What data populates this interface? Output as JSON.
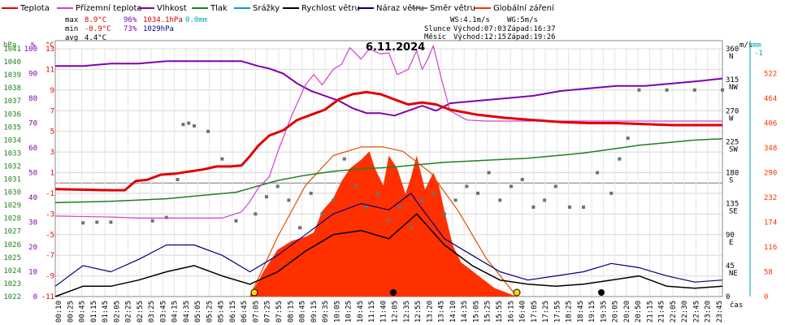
{
  "chart_data": {
    "type": "line",
    "title": "6.11.2024",
    "xlabel": "čas",
    "legend": [
      {
        "name": "Teplota",
        "color": "#e00000"
      },
      {
        "name": "Přízemní teplota",
        "color": "#d040d0"
      },
      {
        "name": "Vlhkost",
        "color": "#8000b0"
      },
      {
        "name": "Tlak",
        "color": "#208020"
      },
      {
        "name": "Srážky",
        "color": "#00a0c0"
      },
      {
        "name": "Rychlost větru",
        "color": "#000000"
      },
      {
        "name": "Náraz větru",
        "color": "#000080"
      },
      {
        "name": "Směr větru",
        "color": "#707070"
      },
      {
        "name": "Globální záření",
        "color": "#ff3000"
      }
    ],
    "stats": {
      "max": {
        "label": "max",
        "temp": "8.9°C",
        "hum": "96%",
        "press": "1034.1hPa",
        "rain": "0.0mm"
      },
      "min": {
        "label": "min",
        "temp": "-0.9°C",
        "hum": "73%",
        "press": "1029hPa"
      },
      "avg": {
        "label": "avg",
        "temp": "4.4°C"
      }
    },
    "info": {
      "ws": "WS:4.1m/s",
      "wg": "WG:5m/s",
      "sun_label": "Slunce",
      "sun_rise": "Východ:07:03",
      "sun_set": "Západ:16:37",
      "moon_label": "Měsíc",
      "moon_rise": "Východ:12:15",
      "moon_set": "Západ:19:26"
    },
    "axes": {
      "hpa": {
        "unit": "hPa",
        "ticks": [
          "1041",
          "1040",
          "1039",
          "1038",
          "1037",
          "1036",
          "1035",
          "1034",
          "1033",
          "1032",
          "1031",
          "1030",
          "1029",
          "1028",
          "1027",
          "1026",
          "1025",
          "1024",
          "1023",
          "1022"
        ],
        "range": [
          1022,
          1041
        ]
      },
      "pct": {
        "unit": "%",
        "ticks": [
          "100",
          "90",
          "80",
          "70",
          "60",
          "50",
          "40",
          "30",
          "20",
          "10",
          "0"
        ],
        "range": [
          0,
          100
        ]
      },
      "temp": {
        "unit": "°C",
        "ticks": [
          "13",
          "11",
          "9",
          "7",
          "5",
          "3",
          "1",
          "-1",
          "-3",
          "-5",
          "-7",
          "-9",
          "-11"
        ],
        "range": [
          -11,
          13
        ]
      },
      "dir": {
        "unit": "m/s",
        "ticks": [
          "360",
          "315",
          "270",
          "225",
          "180",
          "135",
          "90",
          "45",
          "0"
        ],
        "labels": [
          "N",
          "NW",
          "W",
          "SW",
          "S",
          "SE",
          "E",
          "NE",
          ""
        ],
        "range": [
          0,
          360
        ]
      },
      "mm": {
        "unit": "mm",
        "ticks": [
          "-1"
        ]
      },
      "wm2": {
        "ticks": [
          "522",
          "464",
          "406",
          "348",
          "290",
          "232",
          "174",
          "116",
          "58",
          "0"
        ],
        "range": [
          0,
          580
        ]
      }
    },
    "x_ticks": [
      "00:10",
      "00:25",
      "00:45",
      "01:15",
      "01:45",
      "02:05",
      "02:25",
      "02:55",
      "03:25",
      "03:45",
      "04:15",
      "04:35",
      "05:05",
      "05:25",
      "05:45",
      "06:15",
      "06:45",
      "07:05",
      "07:25",
      "07:55",
      "08:15",
      "08:45",
      "09:15",
      "09:35",
      "10:05",
      "10:25",
      "10:45",
      "11:15",
      "11:40",
      "12:05",
      "12:35",
      "12:55",
      "13:20",
      "13:45",
      "14:10",
      "14:35",
      "15:05",
      "15:25",
      "15:55",
      "16:15",
      "16:40",
      "17:05",
      "17:25",
      "17:55",
      "18:25",
      "18:45",
      "19:15",
      "19:35",
      "20:05",
      "20:20",
      "20:50",
      "21:15",
      "21:45",
      "22:05",
      "22:30",
      "22:45",
      "23:20",
      "23:45"
    ],
    "series": {
      "temperature": {
        "x": [
          0,
          2,
          2.5,
          2.9,
          3.3,
          3.8,
          4.3,
          4.8,
          5.3,
          5.8,
          6.3,
          6.7,
          7.0,
          7.3,
          7.7,
          8.2,
          8.7,
          9.2,
          9.7,
          10.2,
          10.7,
          11.2,
          11.7,
          12.2,
          12.7,
          13.2,
          13.7,
          14.2,
          15.2,
          16.2,
          17.2,
          18.2,
          19.2,
          20.2,
          21.2,
          22.2,
          23.2,
          24
        ],
        "y": [
          -0.6,
          -0.7,
          -0.7,
          0.2,
          0.3,
          0.8,
          0.9,
          1.1,
          1.3,
          1.6,
          1.6,
          1.7,
          2.6,
          3.6,
          4.6,
          5.1,
          6.1,
          6.6,
          7.1,
          8.1,
          8.6,
          8.8,
          8.6,
          8.1,
          7.6,
          7.8,
          7.6,
          7.1,
          6.6,
          6.3,
          6.1,
          5.9,
          5.8,
          5.8,
          5.7,
          5.6,
          5.6,
          5.6
        ]
      },
      "ground_temperature": {
        "x": [
          0,
          2,
          3,
          4,
          5,
          6,
          6.7,
          7.0,
          7.3,
          7.7,
          8.0,
          8.5,
          9.0,
          9.3,
          9.6,
          10.0,
          10.3,
          10.6,
          11.0,
          11.3,
          11.7,
          12.0,
          12.3,
          12.7,
          13.0,
          13.2,
          13.4,
          13.6,
          13.9,
          14.2,
          14.8,
          15.5,
          16.5,
          18,
          20,
          22,
          24
        ],
        "y": [
          -3.2,
          -3.3,
          -3.4,
          -3.4,
          -3.4,
          -3.4,
          -2.8,
          -1.8,
          -0.5,
          0.6,
          3.0,
          6.5,
          9.5,
          10.5,
          9.5,
          11.0,
          11.5,
          13.1,
          12.0,
          13.0,
          12.5,
          12.6,
          10.5,
          11.0,
          12.8,
          11.0,
          12.0,
          13.3,
          10.0,
          7.0,
          6.1,
          6.0,
          6.0,
          6.0,
          6.0,
          6.0,
          6.0
        ]
      },
      "humidity": {
        "x": [
          0,
          1,
          2,
          3,
          4,
          5,
          6,
          6.7,
          7.0,
          7.3,
          7.7,
          8.2,
          8.7,
          9.2,
          9.7,
          10.2,
          10.7,
          11.2,
          11.7,
          12.2,
          12.7,
          13.2,
          13.7,
          14.2,
          15.2,
          16.2,
          17.2,
          18.2,
          19.2,
          20.2,
          21.2,
          22.2,
          23.2,
          24
        ],
        "y": [
          93,
          93,
          94,
          94,
          95,
          95,
          95,
          95,
          94,
          93,
          92,
          90,
          86,
          83,
          81,
          79,
          76,
          74,
          74,
          73,
          75,
          77,
          75,
          78,
          79,
          80,
          81,
          83,
          84,
          85,
          85,
          86,
          87,
          88
        ]
      },
      "pressure": {
        "x": [
          0,
          2,
          4,
          6,
          6.5,
          7,
          7.5,
          8,
          9,
          10,
          11,
          12,
          13,
          14,
          15,
          16,
          17,
          18,
          19,
          20,
          21,
          22,
          23,
          24
        ],
        "y": [
          1029.2,
          1029.3,
          1029.5,
          1029.9,
          1030.0,
          1030.3,
          1030.6,
          1030.9,
          1031.3,
          1031.6,
          1031.8,
          1031.9,
          1032.1,
          1032.3,
          1032.4,
          1032.5,
          1032.6,
          1032.8,
          1033.0,
          1033.3,
          1033.6,
          1033.8,
          1034.0,
          1034.1
        ]
      },
      "solar_radiation": {
        "x": [
          7.0,
          7.5,
          8.0,
          8.5,
          9.0,
          9.3,
          9.6,
          10.0,
          10.3,
          10.6,
          11.0,
          11.3,
          11.5,
          11.8,
          12.0,
          12.3,
          12.6,
          12.8,
          13.0,
          13.3,
          13.6,
          13.8,
          14.0,
          14.3,
          14.6,
          15.0,
          15.4,
          15.8,
          16.2,
          16.6
        ],
        "y": [
          0,
          60,
          110,
          130,
          140,
          150,
          200,
          230,
          270,
          300,
          320,
          340,
          300,
          260,
          330,
          300,
          240,
          280,
          330,
          250,
          290,
          260,
          200,
          120,
          80,
          60,
          40,
          20,
          10,
          0
        ]
      },
      "clear_sky_radiation": {
        "x": [
          7.0,
          8.0,
          9.0,
          10.0,
          11.0,
          11.8,
          12.5,
          13.5,
          14.5,
          15.5,
          16.6
        ],
        "y": [
          0,
          140,
          260,
          330,
          350,
          350,
          340,
          290,
          200,
          90,
          0
        ]
      },
      "wind_speed": {
        "x": [
          0,
          1,
          2,
          3,
          4,
          5,
          6,
          7,
          8,
          9,
          10,
          11,
          12,
          13,
          14,
          15,
          16,
          17,
          18,
          19,
          20,
          21,
          22,
          23,
          24
        ],
        "y": [
          0,
          0.5,
          0.5,
          0.8,
          1.2,
          1.5,
          1.0,
          0.6,
          1.2,
          2.2,
          3.0,
          3.2,
          2.8,
          4.0,
          2.5,
          1.5,
          0.8,
          0.6,
          0.5,
          0.6,
          0.8,
          1.0,
          0.5,
          0.4,
          0.5
        ]
      },
      "wind_gust": {
        "x": [
          0,
          1,
          2,
          3,
          4,
          5,
          6,
          7,
          8,
          9,
          10,
          11,
          12,
          12.8,
          13,
          14,
          15,
          16,
          17,
          18,
          19,
          20,
          21,
          22,
          23,
          24
        ],
        "y": [
          0.5,
          1.5,
          1.2,
          1.8,
          2.5,
          2.5,
          2.0,
          1.2,
          2.0,
          3.0,
          4.0,
          4.5,
          4.2,
          5.0,
          4.6,
          2.8,
          2.0,
          1.2,
          0.8,
          1.0,
          1.2,
          1.6,
          1.4,
          1.0,
          0.7,
          0.8
        ]
      },
      "wind_direction": {
        "x": [
          1.0,
          1.5,
          2.0,
          3.5,
          4.0,
          4.4,
          4.6,
          4.8,
          5.0,
          5.5,
          6.0,
          6.5,
          7.2,
          7.6,
          8.0,
          8.4,
          8.8,
          9.2,
          9.6,
          10.0,
          10.4,
          10.8,
          11.2,
          11.6,
          12.0,
          12.4,
          12.8,
          13.2,
          13.6,
          14.0,
          14.4,
          14.8,
          15.2,
          15.6,
          16.0,
          16.4,
          16.8,
          17.2,
          17.6,
          18.0,
          18.5,
          19.0,
          19.5,
          20.0,
          20.3,
          20.6,
          21.0,
          22.0,
          23.0,
          24.0
        ],
        "y": [
          107,
          108,
          108,
          110,
          115,
          170,
          250,
          252,
          248,
          240,
          200,
          110,
          120,
          145,
          160,
          140,
          100,
          150,
          120,
          140,
          200,
          160,
          130,
          150,
          110,
          130,
          100,
          140,
          150,
          120,
          140,
          160,
          150,
          180,
          140,
          160,
          170,
          130,
          140,
          160,
          130,
          130,
          180,
          150,
          200,
          230,
          300,
          300,
          300,
          300
        ]
      }
    }
  }
}
